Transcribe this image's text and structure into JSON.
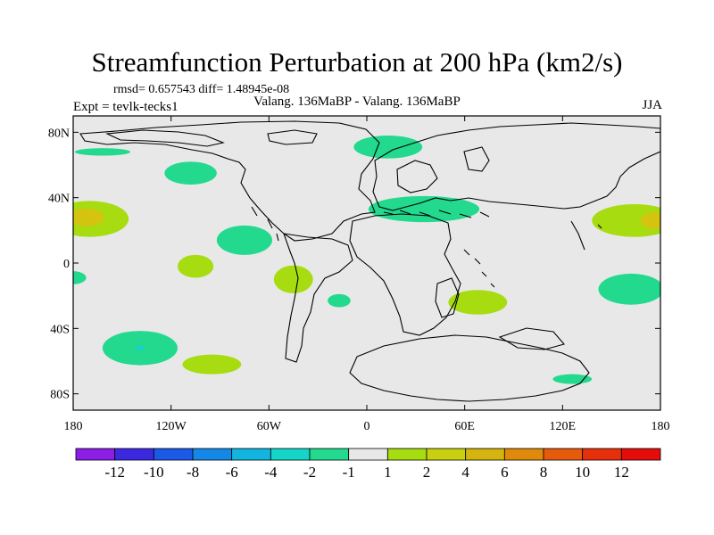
{
  "title": "Streamfunction Perturbation at 200 hPa (km2/s)",
  "stats": "rmsd= 0.657543 diff= 1.48945e-08",
  "experiment": "Expt = tevlk-tecks1",
  "comparison": "Valang. 136MaBP - Valang. 136MaBP",
  "season": "JJA",
  "colors": {
    "land_bg": "#e8e8e8",
    "coast": "#000000",
    "neg1": "#22d98e",
    "neg2": "#15d4c8",
    "pos1": "#a6dc10",
    "pos2": "#d4c410"
  },
  "chart_data": {
    "type": "map-contour",
    "projection": "cylindrical equidistant",
    "lon_range": [
      -180,
      180
    ],
    "lat_range": [
      -90,
      90
    ],
    "lat_ticks": [
      {
        "value": 80,
        "label": "80N"
      },
      {
        "value": 40,
        "label": "40N"
      },
      {
        "value": 0,
        "label": "0"
      },
      {
        "value": -40,
        "label": "40S"
      },
      {
        "value": -80,
        "label": "80S"
      }
    ],
    "lon_ticks": [
      {
        "value": -180,
        "label": "180"
      },
      {
        "value": -120,
        "label": "120W"
      },
      {
        "value": -60,
        "label": "60W"
      },
      {
        "value": 0,
        "label": "0"
      },
      {
        "value": 60,
        "label": "60E"
      },
      {
        "value": 120,
        "label": "120E"
      },
      {
        "value": 180,
        "label": "180"
      }
    ],
    "colorbar": {
      "levels": [
        "-12",
        "-10",
        "-8",
        "-6",
        "-4",
        "-2",
        "-1",
        "1",
        "2",
        "4",
        "6",
        "8",
        "10",
        "12"
      ],
      "colors": [
        "#8c1ee6",
        "#3c28e0",
        "#1a5ae6",
        "#1488e6",
        "#12b4e0",
        "#15d4c8",
        "#22d98e",
        "#e8e8e8",
        "#a6dc10",
        "#c8d010",
        "#d4b40e",
        "#e08a0c",
        "#e65a0c",
        "#e6300c",
        "#e60c0c"
      ]
    },
    "anomalies": [
      {
        "lon": -162,
        "lat": 68,
        "rx": 17,
        "ry": 2.3,
        "level": "-2 to -1"
      },
      {
        "lon": -108,
        "lat": 55,
        "rx": 16,
        "ry": 7,
        "level": "-2 to -1"
      },
      {
        "lon": -170,
        "lat": 27,
        "rx": 24,
        "ry": 11,
        "level": "1 to 2"
      },
      {
        "lon": -172,
        "lat": 28,
        "rx": 11,
        "ry": 5.5,
        "level": "2 to 4"
      },
      {
        "lon": -75,
        "lat": 14,
        "rx": 17,
        "ry": 9,
        "level": "-2 to -1"
      },
      {
        "lon": -105,
        "lat": -2,
        "rx": 11,
        "ry": 7,
        "level": "1 to 2"
      },
      {
        "lon": -45,
        "lat": -10,
        "rx": 12,
        "ry": 8.5,
        "level": "1 to 2"
      },
      {
        "lon": -180,
        "lat": -9,
        "rx": 8,
        "ry": 4,
        "level": "-2 to -1"
      },
      {
        "lon": -17,
        "lat": -23,
        "rx": 7,
        "ry": 4,
        "level": "-2 to -1"
      },
      {
        "lon": 13,
        "lat": 71,
        "rx": 21,
        "ry": 7,
        "level": "-2 to -1"
      },
      {
        "lon": 35,
        "lat": 33,
        "rx": 34,
        "ry": 8,
        "level": "-2 to -1"
      },
      {
        "lon": 68,
        "lat": -24,
        "rx": 18,
        "ry": 7.5,
        "level": "1 to 2"
      },
      {
        "lon": -139,
        "lat": -52,
        "rx": 23,
        "ry": 10.5,
        "level": "-2 to -1"
      },
      {
        "lon": -139,
        "lat": -52,
        "rx": 2.5,
        "ry": 1.5,
        "level": "-4 to -2"
      },
      {
        "lon": -95,
        "lat": -62,
        "rx": 18,
        "ry": 6,
        "level": "1 to 2"
      },
      {
        "lon": 164,
        "lat": 26,
        "rx": 26,
        "ry": 10,
        "level": "1 to 2"
      },
      {
        "lon": 176,
        "lat": 26,
        "rx": 8,
        "ry": 5,
        "level": "2 to 4"
      },
      {
        "lon": 162,
        "lat": -16,
        "rx": 20,
        "ry": 9.5,
        "level": "-2 to -1"
      },
      {
        "lon": 126,
        "lat": -71,
        "rx": 12,
        "ry": 3,
        "level": "-2 to -1"
      }
    ]
  }
}
